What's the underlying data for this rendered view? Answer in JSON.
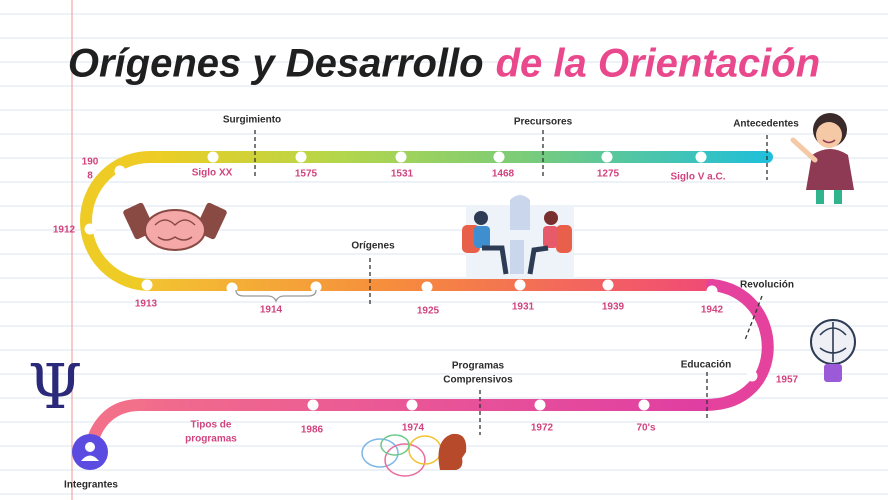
{
  "title": {
    "part1": "Orígenes y Desarrollo",
    "part2": "de la Orientación"
  },
  "milestones": [
    [
      "Surgimiento"
    ],
    [
      "Precursores"
    ],
    [
      "Antecedentes"
    ],
    [
      "Orígenes"
    ],
    [
      "Revolución"
    ],
    [
      "Programas",
      "Comprensivos"
    ],
    [
      "Educación"
    ]
  ],
  "dates": [
    [
      "Siglo XX"
    ],
    [
      "1575"
    ],
    [
      "1531"
    ],
    [
      "1468"
    ],
    [
      "1275"
    ],
    [
      "Siglo V a.C."
    ],
    [
      "190",
      "8"
    ],
    [
      "1912"
    ],
    [
      "1913"
    ],
    [
      "1914"
    ],
    [
      "1925"
    ],
    [
      "1931"
    ],
    [
      "1939"
    ],
    [
      "1942"
    ],
    [
      "1957"
    ],
    [
      "Tipos de",
      "programas"
    ],
    [
      "1986"
    ],
    [
      "1974"
    ],
    [
      "1972"
    ],
    [
      "70's"
    ]
  ],
  "logo": "Ψ",
  "members": "Integrantes"
}
